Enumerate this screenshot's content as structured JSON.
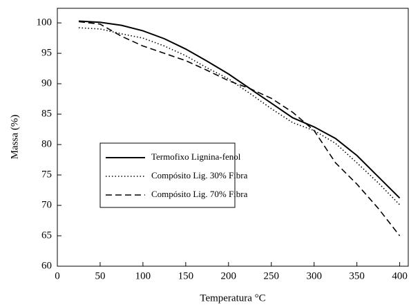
{
  "chart_data": {
    "type": "line",
    "xlabel": "Temperatura °C",
    "ylabel": "Massa (%)",
    "x": [
      25,
      50,
      75,
      100,
      125,
      150,
      175,
      200,
      225,
      250,
      275,
      300,
      325,
      350,
      375,
      400
    ],
    "series": [
      {
        "name": "Termofixo Lignina-fenol",
        "color": "#000000",
        "dash": "solid",
        "values": [
          100.3,
          100.1,
          99.6,
          98.7,
          97.4,
          95.7,
          93.7,
          91.6,
          89.2,
          86.8,
          84.4,
          82.9,
          81.0,
          78.2,
          74.7,
          71.2
        ]
      },
      {
        "name": "Compósito Lig. 30% Fibra",
        "color": "#000000",
        "dash": "dotted",
        "values": [
          99.2,
          99.0,
          98.2,
          97.5,
          96.2,
          94.6,
          92.6,
          90.8,
          88.4,
          85.9,
          83.6,
          82.3,
          80.2,
          77.0,
          73.7,
          70.1
        ]
      },
      {
        "name": "Compósito Lig. 70% Fibra",
        "color": "#000000",
        "dash": "dashed",
        "values": [
          100.2,
          99.8,
          97.8,
          96.2,
          95.0,
          93.8,
          92.2,
          90.5,
          89.2,
          87.6,
          85.3,
          82.3,
          77.0,
          73.5,
          69.5,
          65.0
        ]
      }
    ],
    "xlim": [
      0,
      410
    ],
    "xticks": [
      0,
      50,
      100,
      150,
      200,
      250,
      300,
      350,
      400
    ],
    "ylim": [
      60,
      102.4
    ],
    "yticks": [
      60,
      65,
      70,
      75,
      80,
      85,
      90,
      95,
      100
    ]
  }
}
